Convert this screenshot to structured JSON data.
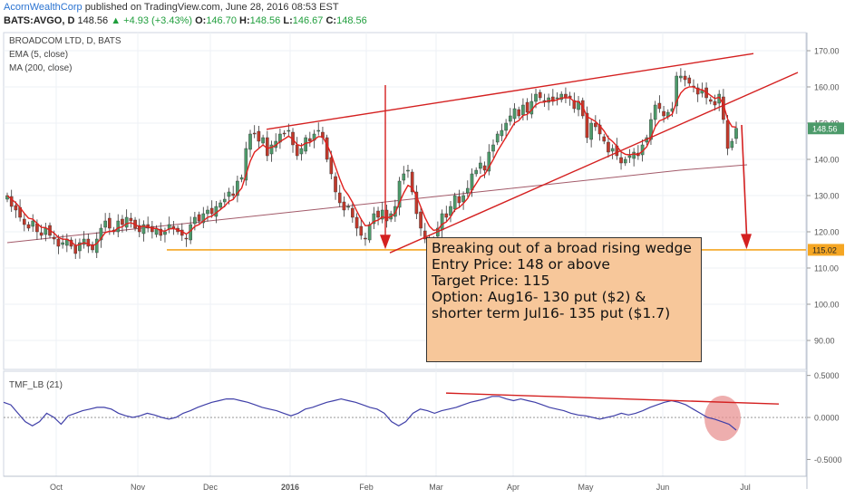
{
  "header": {
    "author": "AcornWealthCorp",
    "published": "published on TradingView.com, June 28, 2016 08:53 EST",
    "symbol": "BATS:AVGO, D",
    "last": "148.56",
    "change": "+4.93 (+3.43%)",
    "o_label": "O:",
    "o_value": "146.70",
    "h_label": "H:",
    "h_value": "148.56",
    "l_label": "L:",
    "l_value": "146.67",
    "c_label": "C:",
    "c_value": "148.56"
  },
  "legend": {
    "title": "BROADCOM LTD, D, BATS",
    "ema": "EMA (5, close)",
    "ma": "MA (200, close)"
  },
  "annotation": {
    "lines": [
      "Breaking out of a broad rising wedge",
      "Entry Price: 148 or above",
      "Target Price: 115",
      "Option: Aug16- 130 put ($2) & shorter term Jul16- 135 put ($1.7)"
    ]
  },
  "colors": {
    "up": "#4c9a6a",
    "down": "#c0392b",
    "ema": "#e0201e",
    "ma": "#a35b6a",
    "trend": "#d42020",
    "support": "#f5a623",
    "tmf": "#3f3fa8",
    "highlight": "#e89393"
  },
  "chart_data": [
    {
      "type": "candlestick",
      "title": "BROADCOM LTD, D, BATS",
      "x_ticks": [
        "Oct",
        "Nov",
        "Dec",
        "2016",
        "Feb",
        "Mar",
        "Apr",
        "May",
        "Jun",
        "Jul"
      ],
      "y_ticks": [
        90,
        100,
        110,
        120,
        130,
        140,
        150,
        160,
        170
      ],
      "ylim": [
        82,
        175
      ],
      "last_price_label": "148.56",
      "support_level": 115.02,
      "support_label": "115.02",
      "close": [
        130,
        127,
        126,
        124,
        122,
        121,
        123,
        120,
        119,
        121,
        119,
        118,
        116,
        117,
        118,
        116,
        114,
        117,
        118,
        116,
        115,
        118,
        121,
        123,
        121,
        120,
        123,
        122,
        124,
        123,
        121,
        120,
        122,
        121,
        120,
        121,
        119,
        120,
        122,
        121,
        120,
        119,
        118,
        122,
        124,
        123,
        125,
        126,
        125,
        127,
        128,
        129,
        131,
        130,
        134,
        135,
        143,
        147,
        147,
        145,
        146,
        141,
        144,
        145,
        147,
        147,
        148,
        144,
        141,
        143,
        146,
        145,
        147,
        148,
        146,
        140,
        136,
        131,
        128,
        126,
        127,
        124,
        121,
        119,
        118,
        122,
        125,
        124,
        126,
        123,
        125,
        127,
        134,
        136,
        137,
        131,
        125,
        121,
        118,
        117,
        118,
        121,
        125,
        124,
        127,
        130,
        128,
        130,
        132,
        136,
        137,
        139,
        137,
        142,
        144,
        147,
        148,
        150,
        152,
        154,
        152,
        155,
        153,
        156,
        158,
        157,
        156,
        157,
        156,
        157,
        158,
        157,
        157,
        154,
        156,
        152,
        146,
        150,
        149,
        147,
        145,
        142,
        143,
        141,
        139,
        140,
        141,
        142,
        141,
        144,
        146,
        151,
        155,
        154,
        152,
        153,
        154,
        163,
        163,
        162,
        161,
        160,
        158,
        159,
        157,
        156,
        155,
        158,
        151,
        143,
        145,
        148.56
      ],
      "ema_period": 5,
      "ma_period": 200,
      "ma200": [
        117,
        119,
        121,
        123,
        125,
        127,
        129,
        131,
        133,
        135,
        137,
        138.5
      ]
    },
    {
      "type": "line",
      "title": "TMF_LB (21)",
      "y_ticks": [
        "0.5000",
        "0.0000",
        "-0.5000"
      ],
      "ylim": [
        -0.7,
        0.55
      ],
      "values": [
        0.18,
        0.15,
        0.05,
        -0.05,
        -0.1,
        -0.05,
        0.05,
        0.0,
        -0.08,
        0.02,
        0.05,
        0.08,
        0.1,
        0.12,
        0.12,
        0.1,
        0.05,
        0.02,
        0.0,
        0.02,
        0.05,
        0.03,
        0.0,
        -0.02,
        0.0,
        0.05,
        0.08,
        0.12,
        0.15,
        0.18,
        0.2,
        0.22,
        0.22,
        0.2,
        0.18,
        0.15,
        0.12,
        0.1,
        0.08,
        0.05,
        0.02,
        0.05,
        0.1,
        0.12,
        0.15,
        0.18,
        0.2,
        0.22,
        0.2,
        0.18,
        0.15,
        0.12,
        0.1,
        0.05,
        -0.05,
        -0.1,
        -0.05,
        0.05,
        0.1,
        0.08,
        0.05,
        0.08,
        0.1,
        0.12,
        0.15,
        0.18,
        0.2,
        0.22,
        0.25,
        0.25,
        0.22,
        0.2,
        0.22,
        0.2,
        0.18,
        0.15,
        0.12,
        0.1,
        0.08,
        0.05,
        0.03,
        0.02,
        0.0,
        -0.02,
        0.0,
        0.02,
        0.05,
        0.03,
        0.05,
        0.08,
        0.12,
        0.15,
        0.18,
        0.2,
        0.18,
        0.15,
        0.1,
        0.05,
        0.0,
        -0.02,
        -0.05,
        -0.08,
        -0.15
      ]
    }
  ]
}
